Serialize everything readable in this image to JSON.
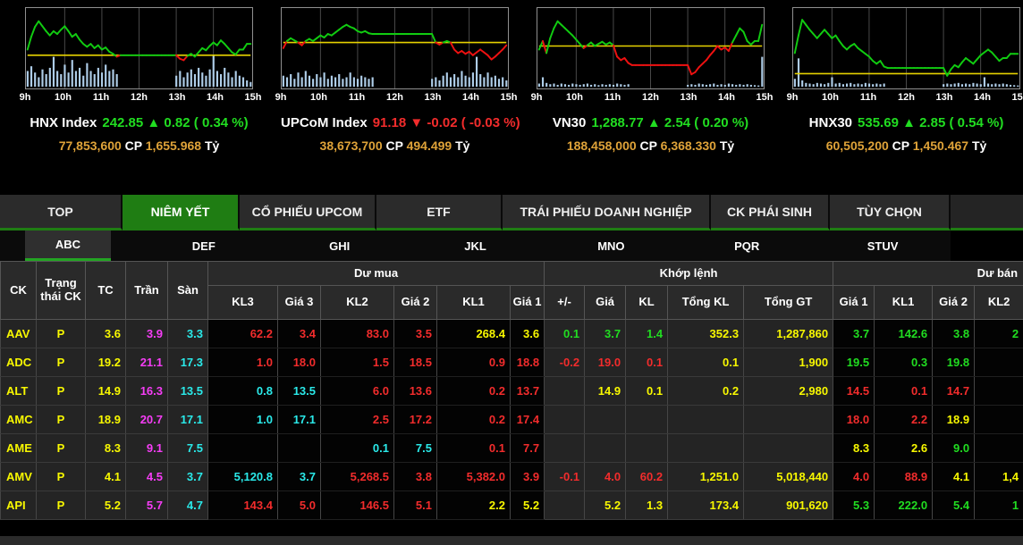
{
  "colors": {
    "up": "#21dd21",
    "down": "#f22c2c",
    "reference_yellow": "#f8f800",
    "ceiling_magenta": "#f53df5",
    "floor_cyan": "#2ae9e9",
    "orange_volume": "#dfa339",
    "accent_green": "#1f7d13",
    "volume_bar_blue": "#aecde8",
    "chart_line_green": "#11cc11",
    "chart_line_red": "#ee1111",
    "chart_ref_yellow": "#e6d200"
  },
  "time_labels": [
    "9h",
    "10h",
    "11h",
    "12h",
    "13h",
    "14h",
    "15h"
  ],
  "charts": [
    {
      "name_slug": "hnx-index",
      "name": "HNX Index",
      "quote": "242.85 ▲ 0.82 ( 0.34 %)",
      "dir": "up",
      "volume": "77,853,600",
      "cp_label": "CP",
      "value": "1,655.968",
      "unit_label": "Tỷ",
      "ref": 0.42,
      "price": [
        0.5,
        0.68,
        0.82,
        0.9,
        0.83,
        0.76,
        0.7,
        0.76,
        0.72,
        0.78,
        0.83,
        0.76,
        0.68,
        0.72,
        0.64,
        0.58,
        0.54,
        0.58,
        0.52,
        0.56,
        0.5,
        0.53,
        0.47,
        0.44,
        0.4,
        0.42,
        0.42,
        0.42,
        0.42,
        0.42,
        0.42,
        0.42,
        0.42,
        0.42,
        0.42,
        0.42,
        0.42,
        0.42,
        0.42,
        0.42,
        0.42,
        0.37,
        0.35,
        0.41,
        0.44,
        0.4,
        0.46,
        0.52,
        0.49,
        0.55,
        0.6,
        0.56,
        0.63,
        0.58,
        0.52,
        0.46,
        0.43,
        0.5,
        0.5,
        0.58,
        0.58
      ],
      "vol": [
        0.5,
        0.65,
        0.45,
        0.3,
        0.55,
        0.4,
        0.6,
        0.95,
        0.5,
        0.4,
        0.7,
        0.45,
        0.85,
        0.5,
        0.6,
        0.35,
        0.75,
        0.5,
        0.4,
        0.6,
        0.45,
        0.7,
        0.5,
        0.55,
        0.4,
        0,
        0,
        0,
        0,
        0,
        0,
        0,
        0,
        0,
        0,
        0,
        0,
        0,
        0,
        0,
        0.35,
        0.5,
        0.3,
        0.45,
        0.55,
        0.4,
        0.6,
        0.45,
        0.35,
        0.55,
        1.0,
        0.5,
        0.4,
        0.6,
        0.45,
        0.3,
        0.5,
        0.35,
        0.3,
        0.2,
        0.15
      ]
    },
    {
      "name_slug": "upcom-index",
      "name": "UPCoM Index",
      "quote": "91.18 ▼ -0.02 ( -0.03 %)",
      "dir": "down",
      "volume": "38,673,700",
      "cp_label": "CP",
      "value": "494.499",
      "unit_label": "Tỷ",
      "ref": 0.6,
      "price": [
        0.52,
        0.62,
        0.66,
        0.63,
        0.6,
        0.56,
        0.62,
        0.65,
        0.62,
        0.66,
        0.7,
        0.67,
        0.72,
        0.7,
        0.74,
        0.78,
        0.82,
        0.85,
        0.82,
        0.8,
        0.76,
        0.74,
        0.76,
        0.73,
        0.72,
        0.72,
        0.72,
        0.72,
        0.72,
        0.72,
        0.72,
        0.72,
        0.72,
        0.72,
        0.72,
        0.72,
        0.72,
        0.72,
        0.72,
        0.72,
        0.72,
        0.6,
        0.57,
        0.6,
        0.62,
        0.6,
        0.5,
        0.45,
        0.48,
        0.44,
        0.47,
        0.42,
        0.46,
        0.5,
        0.46,
        0.42,
        0.36,
        0.4,
        0.45,
        0.5,
        0.56
      ],
      "vol": [
        0.35,
        0.3,
        0.4,
        0.25,
        0.45,
        0.3,
        0.5,
        0.35,
        0.25,
        0.4,
        0.3,
        0.45,
        0.25,
        0.35,
        0.3,
        0.4,
        0.25,
        0.3,
        0.45,
        0.3,
        0.25,
        0.35,
        0.3,
        0.25,
        0.3,
        0,
        0,
        0,
        0,
        0,
        0,
        0,
        0,
        0,
        0,
        0,
        0,
        0,
        0,
        0,
        0.25,
        0.3,
        0.2,
        0.35,
        0.45,
        0.3,
        0.4,
        0.3,
        0.5,
        0.35,
        0.3,
        0.45,
        0.95,
        0.4,
        0.3,
        0.45,
        0.3,
        0.35,
        0.25,
        0.3,
        0.2
      ]
    },
    {
      "name_slug": "vn30",
      "name": "VN30",
      "quote": "1,288.77 ▲ 2.54 ( 0.20 %)",
      "dir": "up",
      "volume": "188,458,000",
      "cp_label": "CP",
      "value": "6,368.330",
      "unit_label": "Tỷ",
      "ref": 0.55,
      "price": [
        0.5,
        0.62,
        0.45,
        0.66,
        0.8,
        0.9,
        0.85,
        0.8,
        0.75,
        0.7,
        0.64,
        0.58,
        0.52,
        0.56,
        0.6,
        0.55,
        0.58,
        0.61,
        0.57,
        0.6,
        0.56,
        0.4,
        0.35,
        0.38,
        0.31,
        0.28,
        0.28,
        0.28,
        0.28,
        0.28,
        0.28,
        0.28,
        0.28,
        0.28,
        0.28,
        0.28,
        0.28,
        0.28,
        0.28,
        0.28,
        0.28,
        0.15,
        0.18,
        0.25,
        0.3,
        0.35,
        0.42,
        0.48,
        0.55,
        0.5,
        0.53,
        0.48,
        0.6,
        0.7,
        0.8,
        0.75,
        0.62,
        0.57,
        0.62,
        0.62,
        0.85
      ],
      "vol": [
        0.1,
        0.3,
        0.12,
        0.08,
        0.1,
        0.06,
        0.1,
        0.08,
        0.06,
        0.1,
        0.08,
        0.06,
        0.08,
        0.1,
        0.06,
        0.08,
        0.05,
        0.08,
        0.06,
        0.08,
        0.06,
        0.1,
        0.08,
        0.06,
        0.08,
        0,
        0,
        0,
        0,
        0,
        0,
        0,
        0,
        0,
        0,
        0,
        0,
        0,
        0,
        0,
        0.06,
        0.08,
        0.06,
        0.1,
        0.08,
        0.06,
        0.08,
        0.1,
        0.06,
        0.08,
        0.06,
        0.1,
        0.08,
        0.06,
        0.08,
        0.06,
        0.08,
        0.06,
        0.05,
        0.04,
        0.95
      ]
    },
    {
      "name_slug": "hnx30",
      "name": "HNX30",
      "quote": "535.69 ▲ 2.85 ( 0.54 %)",
      "dir": "up",
      "volume": "60,505,200",
      "cp_label": "CP",
      "value": "1,450.467",
      "unit_label": "Tỷ",
      "ref": 0.16,
      "price": [
        0.45,
        0.7,
        0.92,
        0.85,
        0.78,
        0.72,
        0.66,
        0.72,
        0.78,
        0.72,
        0.66,
        0.7,
        0.62,
        0.55,
        0.5,
        0.55,
        0.58,
        0.52,
        0.48,
        0.44,
        0.4,
        0.34,
        0.3,
        0.34,
        0.26,
        0.24,
        0.24,
        0.24,
        0.24,
        0.24,
        0.24,
        0.24,
        0.24,
        0.24,
        0.24,
        0.24,
        0.24,
        0.24,
        0.24,
        0.24,
        0.24,
        0.13,
        0.22,
        0.28,
        0.25,
        0.32,
        0.38,
        0.34,
        0.3,
        0.36,
        0.42,
        0.46,
        0.5,
        0.46,
        0.4,
        0.34,
        0.38,
        0.38,
        0.44,
        0.44,
        0.44
      ],
      "vol": [
        0.25,
        0.9,
        0.2,
        0.12,
        0.1,
        0.08,
        0.12,
        0.1,
        0.08,
        0.12,
        0.3,
        0.1,
        0.12,
        0.08,
        0.1,
        0.12,
        0.08,
        0.1,
        0.08,
        0.12,
        0.1,
        0.08,
        0.1,
        0.08,
        0.1,
        0,
        0,
        0,
        0,
        0,
        0,
        0,
        0,
        0,
        0,
        0,
        0,
        0,
        0,
        0,
        0.08,
        0.1,
        0.08,
        0.1,
        0.12,
        0.08,
        0.1,
        0.08,
        0.12,
        0.1,
        0.08,
        0.3,
        0.1,
        0.08,
        0.1,
        0.08,
        0.1,
        0.08,
        0.06,
        0.05,
        0.04
      ]
    }
  ],
  "tabs": [
    {
      "name_slug": "top",
      "label": "TOP",
      "active": false
    },
    {
      "name_slug": "niem-yet",
      "label": "NIÊM YẾT",
      "active": true
    },
    {
      "name_slug": "co-phieu-upcom",
      "label": "CỔ PHIẾU UPCOM",
      "active": false
    },
    {
      "name_slug": "etf",
      "label": "ETF",
      "active": false
    },
    {
      "name_slug": "trai-phieu-doanh-nghiep",
      "label": "TRÁI PHIẾU DOANH NGHIỆP",
      "active": false
    },
    {
      "name_slug": "ck-phai-sinh",
      "label": "CK PHÁI SINH",
      "active": false
    },
    {
      "name_slug": "tuy-chon",
      "label": "TÙY CHỌN",
      "active": false
    }
  ],
  "subtabs": [
    {
      "name_slug": "abc",
      "label": "ABC",
      "active": true
    },
    {
      "name_slug": "def",
      "label": "DEF",
      "active": false
    },
    {
      "name_slug": "ghi",
      "label": "GHI",
      "active": false
    },
    {
      "name_slug": "jkl",
      "label": "JKL",
      "active": false
    },
    {
      "name_slug": "mno",
      "label": "MNO",
      "active": false
    },
    {
      "name_slug": "pqr",
      "label": "PQR",
      "active": false
    },
    {
      "name_slug": "stuv",
      "label": "STUV",
      "active": false
    }
  ],
  "table": {
    "fixed_headers": [
      "CK",
      "Trạng thái CK",
      "TC",
      "Trần",
      "Sàn"
    ],
    "group_headers": {
      "du_mua": "Dư mua",
      "khop_lenh": "Khớp lệnh",
      "du_ban": "Dư bán"
    },
    "sub_headers": [
      "KL3",
      "Giá 3",
      "KL2",
      "Giá 2",
      "KL1",
      "Giá 1",
      "+/-",
      "Giá",
      "KL",
      "Tổng KL",
      "Tổng GT",
      "Giá 1",
      "KL1",
      "Giá 2",
      "KL2"
    ],
    "rows": [
      {
        "cells": [
          [
            "AAV",
            "y"
          ],
          [
            "P",
            "y"
          ],
          [
            "3.6",
            "y"
          ],
          [
            "3.9",
            "m"
          ],
          [
            "3.3",
            "c"
          ],
          [
            "62.2",
            "r"
          ],
          [
            "3.4",
            "r"
          ],
          [
            "83.0",
            "r"
          ],
          [
            "3.5",
            "r"
          ],
          [
            "268.4",
            "y"
          ],
          [
            "3.6",
            "y"
          ],
          [
            "0.1",
            "g"
          ],
          [
            "3.7",
            "g"
          ],
          [
            "1.4",
            "g"
          ],
          [
            "352.3",
            "y"
          ],
          [
            "1,287,860",
            "y"
          ],
          [
            "3.7",
            "g"
          ],
          [
            "142.6",
            "g"
          ],
          [
            "3.8",
            "g"
          ],
          [
            "2",
            "g"
          ]
        ]
      },
      {
        "cells": [
          [
            "ADC",
            "y"
          ],
          [
            "P",
            "y"
          ],
          [
            "19.2",
            "y"
          ],
          [
            "21.1",
            "m"
          ],
          [
            "17.3",
            "c"
          ],
          [
            "1.0",
            "r"
          ],
          [
            "18.0",
            "r"
          ],
          [
            "1.5",
            "r"
          ],
          [
            "18.5",
            "r"
          ],
          [
            "0.9",
            "r"
          ],
          [
            "18.8",
            "r"
          ],
          [
            "-0.2",
            "r"
          ],
          [
            "19.0",
            "r"
          ],
          [
            "0.1",
            "r"
          ],
          [
            "0.1",
            "y"
          ],
          [
            "1,900",
            "y"
          ],
          [
            "19.5",
            "g"
          ],
          [
            "0.3",
            "g"
          ],
          [
            "19.8",
            "g"
          ],
          [
            "",
            ""
          ]
        ]
      },
      {
        "cells": [
          [
            "ALT",
            "y"
          ],
          [
            "P",
            "y"
          ],
          [
            "14.9",
            "y"
          ],
          [
            "16.3",
            "m"
          ],
          [
            "13.5",
            "c"
          ],
          [
            "0.8",
            "c"
          ],
          [
            "13.5",
            "c"
          ],
          [
            "6.0",
            "r"
          ],
          [
            "13.6",
            "r"
          ],
          [
            "0.2",
            "r"
          ],
          [
            "13.7",
            "r"
          ],
          [
            "",
            ""
          ],
          [
            "14.9",
            "y"
          ],
          [
            "0.1",
            "y"
          ],
          [
            "0.2",
            "y"
          ],
          [
            "2,980",
            "y"
          ],
          [
            "14.5",
            "r"
          ],
          [
            "0.1",
            "r"
          ],
          [
            "14.7",
            "r"
          ],
          [
            "",
            ""
          ]
        ]
      },
      {
        "cells": [
          [
            "AMC",
            "y"
          ],
          [
            "P",
            "y"
          ],
          [
            "18.9",
            "y"
          ],
          [
            "20.7",
            "m"
          ],
          [
            "17.1",
            "c"
          ],
          [
            "1.0",
            "c"
          ],
          [
            "17.1",
            "c"
          ],
          [
            "2.5",
            "r"
          ],
          [
            "17.2",
            "r"
          ],
          [
            "0.2",
            "r"
          ],
          [
            "17.4",
            "r"
          ],
          [
            "",
            ""
          ],
          [
            "",
            ""
          ],
          [
            "",
            ""
          ],
          [
            "",
            ""
          ],
          [
            "",
            ""
          ],
          [
            "18.0",
            "r"
          ],
          [
            "2.2",
            "r"
          ],
          [
            "18.9",
            "y"
          ],
          [
            "",
            ""
          ]
        ]
      },
      {
        "cells": [
          [
            "AME",
            "y"
          ],
          [
            "P",
            "y"
          ],
          [
            "8.3",
            "y"
          ],
          [
            "9.1",
            "m"
          ],
          [
            "7.5",
            "c"
          ],
          [
            "",
            ""
          ],
          [
            "",
            ""
          ],
          [
            "0.1",
            "c"
          ],
          [
            "7.5",
            "c"
          ],
          [
            "0.1",
            "r"
          ],
          [
            "7.7",
            "r"
          ],
          [
            "",
            ""
          ],
          [
            "",
            ""
          ],
          [
            "",
            ""
          ],
          [
            "",
            ""
          ],
          [
            "",
            ""
          ],
          [
            "8.3",
            "y"
          ],
          [
            "2.6",
            "y"
          ],
          [
            "9.0",
            "g"
          ],
          [
            "",
            ""
          ]
        ]
      },
      {
        "cells": [
          [
            "AMV",
            "y"
          ],
          [
            "P",
            "y"
          ],
          [
            "4.1",
            "y"
          ],
          [
            "4.5",
            "m"
          ],
          [
            "3.7",
            "c"
          ],
          [
            "5,120.8",
            "c"
          ],
          [
            "3.7",
            "c"
          ],
          [
            "5,268.5",
            "r"
          ],
          [
            "3.8",
            "r"
          ],
          [
            "5,382.0",
            "r"
          ],
          [
            "3.9",
            "r"
          ],
          [
            "-0.1",
            "r"
          ],
          [
            "4.0",
            "r"
          ],
          [
            "60.2",
            "r"
          ],
          [
            "1,251.0",
            "y"
          ],
          [
            "5,018,440",
            "y"
          ],
          [
            "4.0",
            "r"
          ],
          [
            "88.9",
            "r"
          ],
          [
            "4.1",
            "y"
          ],
          [
            "1,4",
            "y"
          ]
        ]
      },
      {
        "cells": [
          [
            "API",
            "y"
          ],
          [
            "P",
            "y"
          ],
          [
            "5.2",
            "y"
          ],
          [
            "5.7",
            "m"
          ],
          [
            "4.7",
            "c"
          ],
          [
            "143.4",
            "r"
          ],
          [
            "5.0",
            "r"
          ],
          [
            "146.5",
            "r"
          ],
          [
            "5.1",
            "r"
          ],
          [
            "2.2",
            "y"
          ],
          [
            "5.2",
            "y"
          ],
          [
            "",
            ""
          ],
          [
            "5.2",
            "y"
          ],
          [
            "1.3",
            "y"
          ],
          [
            "173.4",
            "y"
          ],
          [
            "901,620",
            "y"
          ],
          [
            "5.3",
            "g"
          ],
          [
            "222.0",
            "g"
          ],
          [
            "5.4",
            "g"
          ],
          [
            "1",
            "g"
          ]
        ]
      }
    ]
  }
}
